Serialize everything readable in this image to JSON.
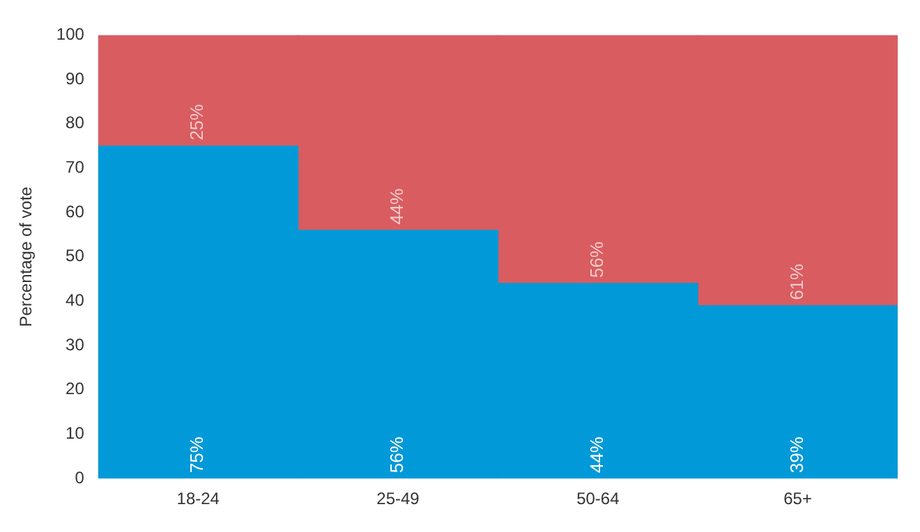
{
  "chart_data": {
    "type": "bar",
    "ylabel": "Percentage of vote",
    "categories": [
      "18-24",
      "25-49",
      "50-64",
      "65+"
    ],
    "stacked": true,
    "ylim": [
      0,
      100
    ],
    "yticks": [
      0,
      10,
      20,
      30,
      40,
      50,
      60,
      70,
      80,
      90,
      100
    ],
    "grid": false,
    "legend": false,
    "series": [
      {
        "color": "#0299d8",
        "values": [
          75,
          56,
          44,
          39
        ],
        "value_labels": [
          "75%",
          "56%",
          "44%",
          "39%"
        ]
      },
      {
        "color": "#d95c60",
        "values": [
          25,
          44,
          56,
          61
        ],
        "value_labels": [
          "25%",
          "44%",
          "56%",
          "61%"
        ]
      }
    ]
  }
}
